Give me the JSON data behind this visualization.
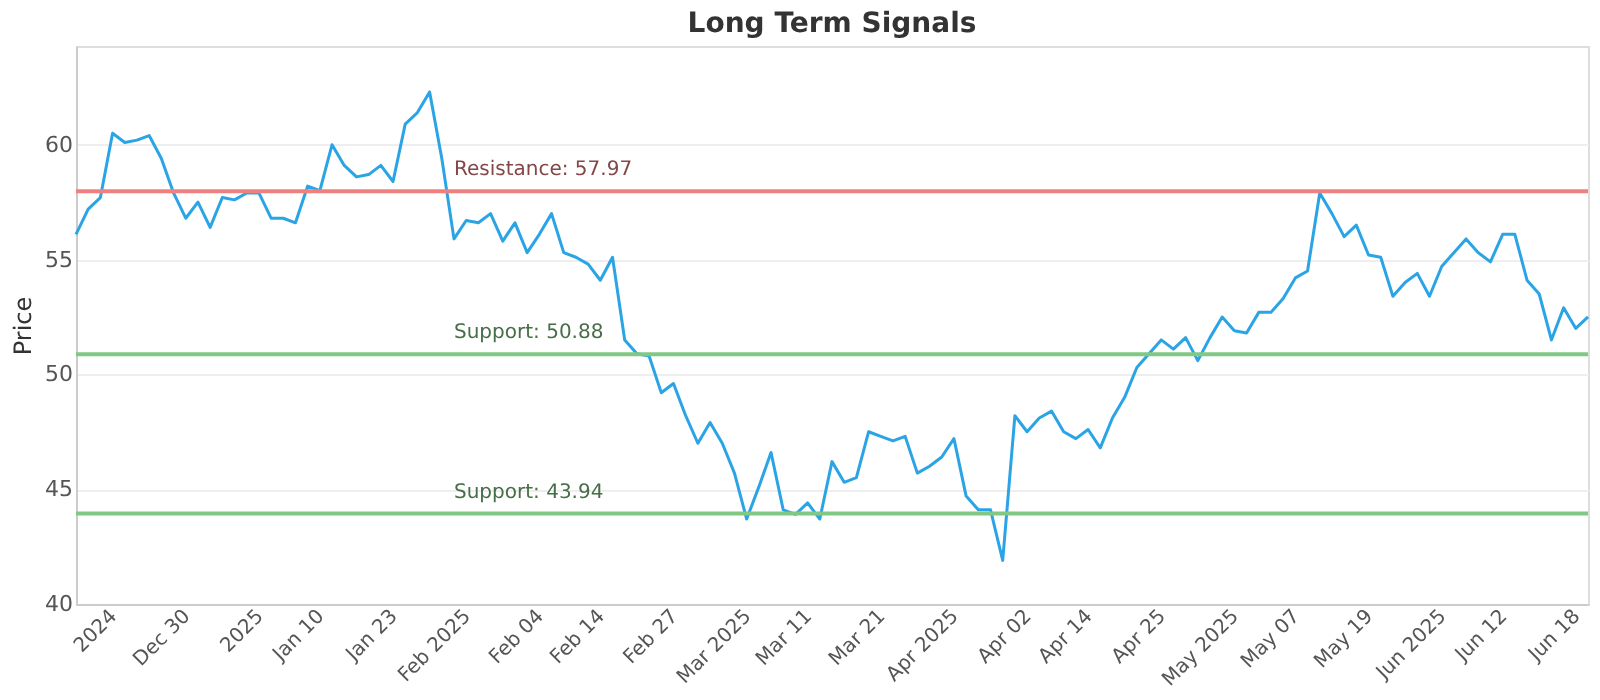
{
  "chart_data": {
    "type": "line",
    "title": "Long Term Signals",
    "ylabel": "Price",
    "categories": [
      null,
      null,
      null,
      "2024",
      null,
      null,
      null,
      null,
      null,
      "Dec 30",
      null,
      null,
      null,
      null,
      null,
      "2025",
      null,
      null,
      null,
      null,
      "Jan 10",
      null,
      null,
      null,
      null,
      null,
      "Jan 23",
      null,
      null,
      null,
      null,
      null,
      "Feb 2025",
      null,
      null,
      null,
      null,
      null,
      "Feb 04",
      null,
      null,
      null,
      null,
      "Feb 14",
      null,
      null,
      null,
      null,
      null,
      "Feb 27",
      null,
      null,
      null,
      null,
      null,
      "Mar 2025",
      null,
      null,
      null,
      null,
      "Mar 11",
      null,
      null,
      null,
      null,
      null,
      "Mar 21",
      null,
      null,
      null,
      null,
      null,
      "Apr 2025",
      null,
      null,
      null,
      null,
      null,
      "Apr 02",
      null,
      null,
      null,
      null,
      "Apr 14",
      null,
      null,
      null,
      null,
      null,
      "Apr 25",
      null,
      null,
      null,
      null,
      null,
      "May 2025",
      null,
      null,
      null,
      null,
      "May 07",
      null,
      null,
      null,
      null,
      null,
      "May 19",
      null,
      null,
      null,
      null,
      null,
      "Jun 2025",
      null,
      null,
      null,
      null,
      "Jun 12",
      null,
      null,
      null,
      null,
      null,
      "Jun 18",
      null
    ],
    "series": [
      {
        "color": "#2ba4e6",
        "values": [
          56.1,
          57.2,
          57.7,
          60.5,
          60.1,
          60.2,
          60.4,
          59.4,
          57.9,
          56.8,
          57.5,
          56.4,
          57.7,
          57.6,
          57.9,
          57.9,
          56.8,
          56.8,
          56.6,
          58.2,
          58.0,
          60.0,
          59.1,
          58.6,
          58.7,
          59.1,
          58.4,
          60.9,
          61.4,
          62.3,
          59.4,
          55.9,
          56.7,
          56.6,
          57.0,
          55.8,
          56.6,
          55.3,
          56.1,
          57.0,
          55.3,
          55.1,
          54.8,
          54.1,
          55.1,
          51.5,
          50.9,
          50.8,
          49.2,
          49.6,
          48.2,
          47.0,
          47.9,
          47.0,
          45.7,
          43.7,
          45.1,
          46.6,
          44.1,
          43.9,
          44.4,
          43.7,
          46.2,
          45.3,
          45.5,
          47.5,
          47.3,
          47.1,
          47.3,
          45.7,
          46.0,
          46.4,
          47.2,
          44.7,
          44.1,
          44.1,
          41.9,
          48.2,
          47.5,
          48.1,
          48.4,
          47.5,
          47.2,
          47.6,
          46.8,
          48.1,
          49.0,
          50.3,
          50.9,
          51.5,
          51.1,
          51.6,
          50.6,
          51.6,
          52.5,
          51.9,
          51.8,
          52.7,
          52.7,
          53.3,
          54.2,
          54.5,
          57.9,
          57.0,
          56.0,
          56.5,
          55.2,
          55.1,
          53.4,
          54.0,
          54.4,
          53.4,
          54.7,
          55.3,
          55.9,
          55.3,
          54.9,
          56.1,
          56.1,
          54.1,
          53.5,
          51.5,
          52.9,
          52.0,
          52.5
        ]
      }
    ],
    "ylim": [
      40,
      64.3
    ],
    "yticks": [
      40,
      45,
      50,
      55,
      60
    ],
    "grid": "y",
    "marker": "none",
    "line_style": "solid",
    "ref_lines": [
      {
        "axis": "y",
        "value": 57.97,
        "label": "Resistance: 57.97",
        "color": "#f08080"
      },
      {
        "axis": "y",
        "value": 50.88,
        "label": "Support: 50.88",
        "color": "#80c883"
      },
      {
        "axis": "y",
        "value": 43.94,
        "label": "Support: 43.94",
        "color": "#80c883"
      }
    ]
  }
}
